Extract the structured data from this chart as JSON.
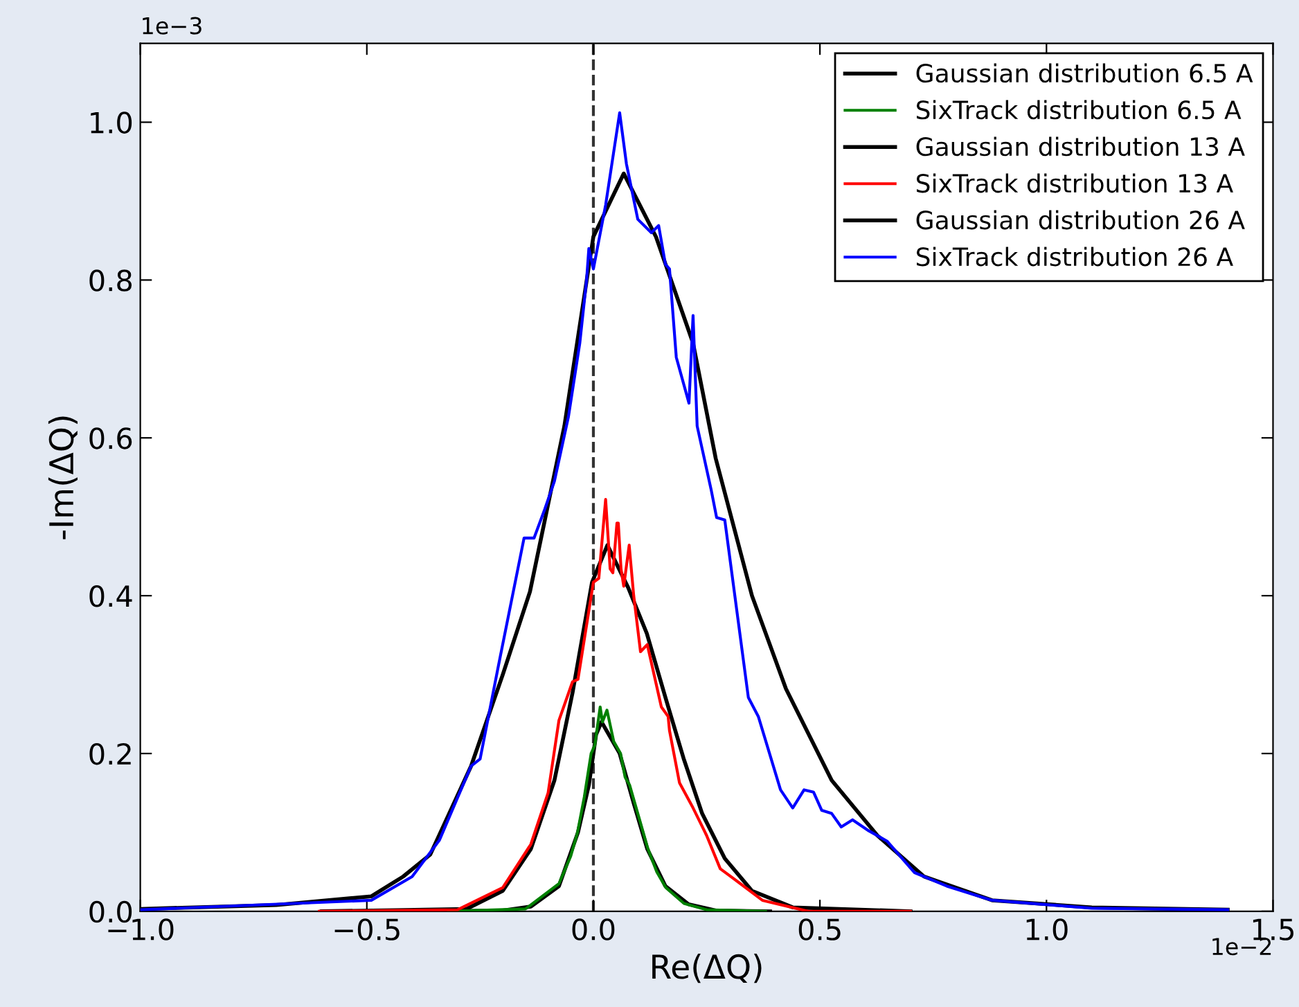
{
  "chart_data": {
    "type": "line",
    "xlabel": "Re(ΔQ)",
    "ylabel": "-Im(ΔQ)",
    "xlim": [
      -1.0,
      1.5
    ],
    "ylim": [
      0.0,
      1.1
    ],
    "xticks": [
      {
        "value": -1.0,
        "label": "−1.0"
      },
      {
        "value": -0.5,
        "label": "−0.5"
      },
      {
        "value": 0.0,
        "label": "0.0"
      },
      {
        "value": 0.5,
        "label": "0.5"
      },
      {
        "value": 1.0,
        "label": "1.0"
      },
      {
        "value": 1.5,
        "label": "1.5"
      }
    ],
    "yticks": [
      {
        "value": 0.0,
        "label": "0.0"
      },
      {
        "value": 0.2,
        "label": "0.2"
      },
      {
        "value": 0.4,
        "label": "0.4"
      },
      {
        "value": 0.6,
        "label": "0.6"
      },
      {
        "value": 0.8,
        "label": "0.8"
      },
      {
        "value": 1.0,
        "label": "1.0"
      }
    ],
    "annotations": [
      "1e−3",
      "1e−2"
    ],
    "ref_lines": [
      {
        "axis": "x",
        "value": 0.0,
        "label": null,
        "color": "#333333",
        "line_style": "dashed"
      }
    ],
    "grid": false,
    "legend": "top right",
    "marker": "none",
    "line_style": "solid",
    "series": [
      {
        "name": "Gaussian distribution 6.5 A",
        "color": "#000000",
        "x": [
          -0.33,
          -0.2,
          -0.138,
          -0.076,
          -0.034,
          -0.01,
          0.006,
          0.018,
          0.058,
          0.089,
          0.119,
          0.159,
          0.21,
          0.27,
          0.39
        ],
        "values": [
          0.0,
          0.001,
          0.006,
          0.032,
          0.1,
          0.16,
          0.224,
          0.24,
          0.2,
          0.137,
          0.079,
          0.032,
          0.009,
          0.001,
          0.0
        ]
      },
      {
        "name": "SixTrack distribution 6.5 A",
        "color": "#008000",
        "x": [
          -0.32,
          -0.15,
          -0.076,
          -0.05,
          -0.035,
          -0.02,
          -0.005,
          0.003,
          0.015,
          0.02,
          0.03,
          0.045,
          0.06,
          0.07,
          0.08,
          0.09,
          0.1,
          0.12,
          0.14,
          0.16,
          0.2,
          0.25,
          0.38
        ],
        "values": [
          0.0,
          0.003,
          0.035,
          0.07,
          0.1,
          0.145,
          0.2,
          0.21,
          0.259,
          0.24,
          0.255,
          0.215,
          0.2,
          0.17,
          0.16,
          0.14,
          0.12,
          0.08,
          0.05,
          0.03,
          0.01,
          0.002,
          0.0
        ]
      },
      {
        "name": "Gaussian distribution 13 A",
        "color": "#000000",
        "x": [
          -0.6,
          -0.28,
          -0.2,
          -0.138,
          -0.086,
          -0.046,
          -0.003,
          0.031,
          0.077,
          0.118,
          0.159,
          0.199,
          0.24,
          0.29,
          0.35,
          0.44,
          0.7
        ],
        "values": [
          0.0,
          0.003,
          0.026,
          0.079,
          0.166,
          0.277,
          0.417,
          0.464,
          0.41,
          0.352,
          0.271,
          0.194,
          0.124,
          0.067,
          0.026,
          0.005,
          0.0
        ]
      },
      {
        "name": "SixTrack distribution 13 A",
        "color": "#ff0000",
        "x": [
          -0.605,
          -0.3,
          -0.2,
          -0.138,
          -0.1,
          -0.076,
          -0.046,
          -0.034,
          0.0,
          0.012,
          0.027,
          0.037,
          0.043,
          0.052,
          0.055,
          0.061,
          0.067,
          0.079,
          0.089,
          0.104,
          0.119,
          0.15,
          0.165,
          0.168,
          0.19,
          0.22,
          0.25,
          0.28,
          0.32,
          0.373,
          0.474,
          0.7
        ],
        "values": [
          0.0,
          0.002,
          0.03,
          0.085,
          0.15,
          0.242,
          0.291,
          0.294,
          0.417,
          0.422,
          0.522,
          0.434,
          0.429,
          0.492,
          0.492,
          0.434,
          0.412,
          0.464,
          0.4,
          0.329,
          0.338,
          0.259,
          0.247,
          0.229,
          0.163,
          0.131,
          0.096,
          0.054,
          0.037,
          0.014,
          0.0,
          0.0
        ]
      },
      {
        "name": "Gaussian distribution 26 A",
        "color": "#000000",
        "x": [
          -1.0,
          -0.7,
          -0.49,
          -0.42,
          -0.36,
          -0.27,
          -0.2,
          -0.14,
          -0.064,
          0.0,
          0.067,
          0.138,
          0.22,
          0.27,
          0.35,
          0.425,
          0.526,
          0.627,
          0.73,
          0.88,
          1.1,
          1.4
        ],
        "values": [
          0.003,
          0.008,
          0.019,
          0.044,
          0.072,
          0.184,
          0.3,
          0.405,
          0.615,
          0.855,
          0.935,
          0.855,
          0.72,
          0.574,
          0.4,
          0.282,
          0.166,
          0.096,
          0.044,
          0.014,
          0.005,
          0.002
        ]
      },
      {
        "name": "SixTrack distribution 26 A",
        "color": "#0000ff",
        "x": [
          -1.0,
          -0.49,
          -0.4,
          -0.34,
          -0.27,
          -0.25,
          -0.21,
          -0.153,
          -0.131,
          -0.107,
          -0.086,
          -0.055,
          -0.03,
          -0.015,
          -0.01,
          0.0,
          0.027,
          0.058,
          0.073,
          0.098,
          0.128,
          0.144,
          0.159,
          0.168,
          0.183,
          0.211,
          0.22,
          0.229,
          0.26,
          0.272,
          0.29,
          0.342,
          0.364,
          0.413,
          0.44,
          0.465,
          0.486,
          0.504,
          0.526,
          0.547,
          0.572,
          0.608,
          0.648,
          0.709,
          0.78,
          0.88,
          1.1,
          1.4
        ],
        "values": [
          0.002,
          0.014,
          0.044,
          0.09,
          0.184,
          0.193,
          0.31,
          0.473,
          0.473,
          0.51,
          0.545,
          0.627,
          0.72,
          0.8,
          0.84,
          0.814,
          0.895,
          1.012,
          0.947,
          0.877,
          0.86,
          0.869,
          0.82,
          0.814,
          0.702,
          0.644,
          0.755,
          0.615,
          0.534,
          0.499,
          0.496,
          0.271,
          0.247,
          0.154,
          0.131,
          0.154,
          0.151,
          0.128,
          0.124,
          0.107,
          0.116,
          0.102,
          0.089,
          0.049,
          0.032,
          0.014,
          0.004,
          0.002
        ]
      }
    ]
  }
}
